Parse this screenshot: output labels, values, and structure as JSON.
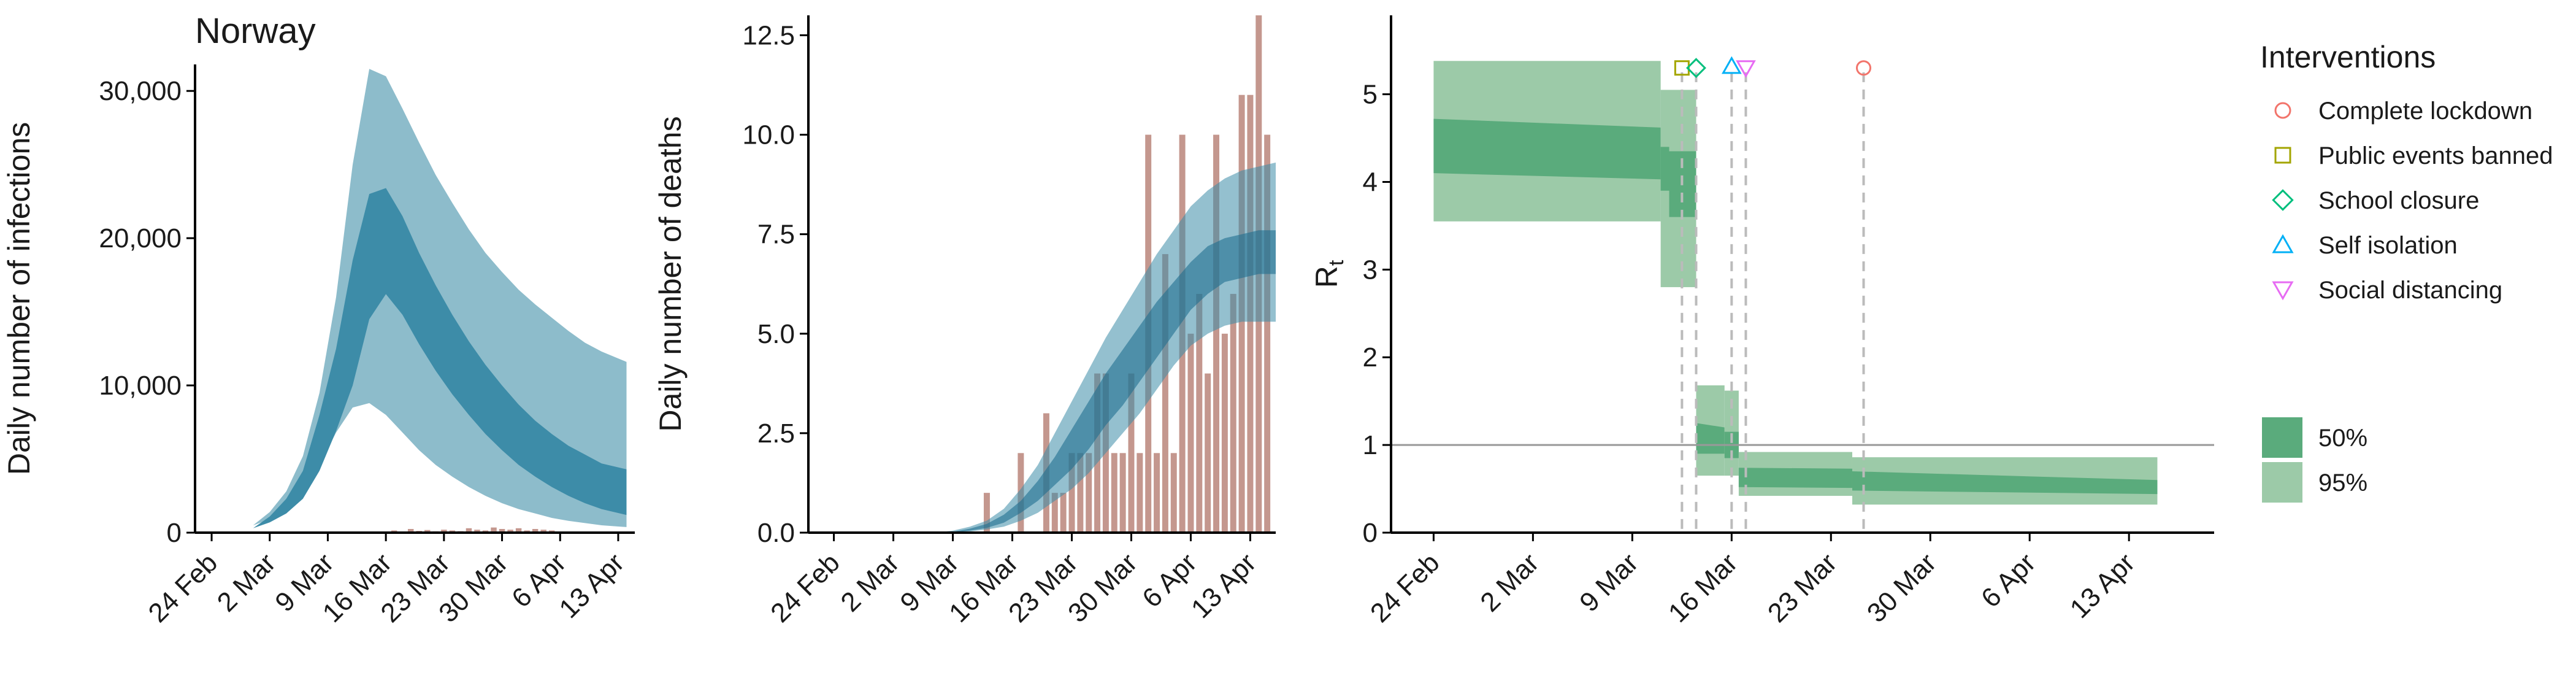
{
  "title": "Norway",
  "colors": {
    "infection_ci95": "#8dbccb",
    "infection_ci50": "#3d8ca8",
    "bars": "#c4978e",
    "rt_ci95": "#9ccaa8",
    "rt_ci50": "#5aab7c",
    "axis": "#000000",
    "dashed": "#bbbbbb",
    "ref_line": "#999999"
  },
  "chart_data": [
    {
      "type": "area",
      "name": "infections",
      "ylabel": "Daily number of infections",
      "xticks": [
        "24 Feb",
        "2 Mar",
        "9 Mar",
        "16 Mar",
        "23 Mar",
        "30 Mar",
        "6 Apr",
        "13 Apr"
      ],
      "xtick_days": [
        0,
        7,
        14,
        21,
        28,
        35,
        42,
        49
      ],
      "yticks": [
        0,
        10000,
        20000,
        30000
      ],
      "ytick_labels": [
        "0",
        "10,000",
        "20,000",
        "30,000"
      ],
      "ylim": [
        0,
        31800
      ],
      "xlim": [
        -2,
        51
      ],
      "bands": {
        "days": [
          0,
          3,
          5,
          7,
          9,
          11,
          13,
          15,
          17,
          19,
          21,
          23,
          25,
          27,
          29,
          31,
          33,
          35,
          37,
          39,
          41,
          43,
          45,
          47,
          50
        ],
        "ci95_low": [
          500,
          500,
          500,
          900,
          1600,
          2800,
          4600,
          6800,
          8500,
          8800,
          8000,
          6800,
          5600,
          4600,
          3800,
          3100,
          2500,
          2000,
          1600,
          1300,
          1000,
          800,
          650,
          500,
          380
        ],
        "ci95_high": [
          500,
          500,
          500,
          1400,
          2800,
          5200,
          9500,
          16000,
          25000,
          31500,
          31000,
          28800,
          26500,
          24300,
          22400,
          20600,
          19000,
          17700,
          16500,
          15500,
          14600,
          13700,
          12900,
          12300,
          11600
        ],
        "ci50_low": [
          300,
          300,
          300,
          700,
          1300,
          2300,
          4200,
          6900,
          10000,
          14500,
          16200,
          14800,
          12800,
          11000,
          9400,
          8000,
          6700,
          5600,
          4600,
          3800,
          3100,
          2500,
          2000,
          1600,
          1200
        ],
        "ci50_high": [
          300,
          300,
          300,
          1100,
          2300,
          4200,
          8000,
          12500,
          18500,
          23000,
          23400,
          21500,
          19000,
          16800,
          14800,
          13000,
          11400,
          10000,
          8700,
          7600,
          6700,
          5900,
          5300,
          4700,
          4300
        ]
      },
      "bar_days": [
        22,
        23,
        24,
        25,
        26,
        27,
        28,
        29,
        30,
        31,
        32,
        33,
        34,
        35,
        36,
        37,
        38,
        39,
        40,
        41
      ],
      "bar_values": [
        150,
        80,
        250,
        120,
        180,
        90,
        200,
        150,
        100,
        300,
        200,
        150,
        350,
        250,
        200,
        300,
        150,
        250,
        200,
        150
      ]
    },
    {
      "type": "bar",
      "name": "deaths",
      "ylabel": "Daily number of deaths",
      "xticks": [
        "24 Feb",
        "2 Mar",
        "9 Mar",
        "16 Mar",
        "23 Mar",
        "30 Mar",
        "6 Apr",
        "13 Apr"
      ],
      "xtick_days": [
        0,
        7,
        14,
        21,
        28,
        35,
        42,
        49
      ],
      "yticks": [
        0,
        2.5,
        5,
        7.5,
        10,
        12.5
      ],
      "ytick_labels": [
        "0.0",
        "2.5",
        "5.0",
        "7.5",
        "10.0",
        "12.5"
      ],
      "ylim": [
        0,
        13
      ],
      "xlim": [
        -3,
        52
      ],
      "bar_days": [
        18,
        22,
        25,
        26,
        27,
        28,
        29,
        30,
        31,
        32,
        33,
        34,
        35,
        36,
        37,
        38,
        39,
        40,
        41,
        42,
        43,
        44,
        45,
        46,
        47,
        48,
        49,
        50,
        51
      ],
      "bar_values": [
        1,
        2,
        3,
        1,
        1,
        2,
        2,
        2,
        4,
        4,
        2,
        2,
        4,
        2,
        10,
        2,
        7,
        2,
        10,
        5,
        6,
        4,
        10,
        5,
        6,
        11,
        11,
        13,
        10
      ],
      "bands": {
        "days": [
          0,
          12,
          14,
          16,
          18,
          20,
          22,
          24,
          26,
          28,
          30,
          32,
          34,
          36,
          38,
          40,
          42,
          44,
          46,
          48,
          50,
          52
        ],
        "ci95_low": [
          0,
          0,
          0,
          0.03,
          0.08,
          0.15,
          0.3,
          0.5,
          0.8,
          1.1,
          1.5,
          2.0,
          2.5,
          3.0,
          3.6,
          4.2,
          4.7,
          5.0,
          5.2,
          5.3,
          5.3,
          5.3
        ],
        "ci95_high": [
          0,
          0,
          0.05,
          0.15,
          0.3,
          0.6,
          1.1,
          1.7,
          2.5,
          3.3,
          4.1,
          4.9,
          5.6,
          6.3,
          7.0,
          7.6,
          8.2,
          8.6,
          8.9,
          9.1,
          9.2,
          9.3
        ],
        "ci50_low": [
          0,
          0,
          0,
          0.05,
          0.12,
          0.25,
          0.5,
          0.8,
          1.2,
          1.6,
          2.1,
          2.7,
          3.2,
          3.8,
          4.4,
          5.0,
          5.6,
          6.0,
          6.3,
          6.4,
          6.5,
          6.5
        ],
        "ci50_high": [
          0,
          0,
          0.02,
          0.1,
          0.22,
          0.45,
          0.8,
          1.3,
          1.9,
          2.6,
          3.3,
          4.0,
          4.6,
          5.2,
          5.8,
          6.3,
          6.8,
          7.2,
          7.4,
          7.5,
          7.6,
          7.6
        ]
      }
    },
    {
      "type": "area",
      "name": "rt",
      "ylabel": "Rt",
      "xticks": [
        "24 Feb",
        "2 Mar",
        "9 Mar",
        "16 Mar",
        "23 Mar",
        "30 Mar",
        "6 Apr",
        "13 Apr"
      ],
      "xtick_days": [
        0,
        7,
        14,
        21,
        28,
        35,
        42,
        49
      ],
      "yticks": [
        0,
        1,
        2,
        3,
        4,
        5
      ],
      "ytick_labels": [
        "0",
        "1",
        "2",
        "3",
        "4",
        "5"
      ],
      "ylim": [
        0,
        5.9
      ],
      "xlim": [
        -3,
        55
      ],
      "reference_line": 1,
      "segments": [
        {
          "start": 0,
          "end": 16,
          "ci95": [
            3.55,
            5.38
          ],
          "ci50_start": [
            4.1,
            4.72
          ],
          "ci50_end": [
            4.03,
            4.62
          ]
        },
        {
          "start": 16,
          "end": 16.6,
          "ci95": [
            2.8,
            5.05
          ],
          "ci50_start": [
            3.9,
            4.4
          ],
          "ci50_end": [
            3.9,
            4.4
          ]
        },
        {
          "start": 16.6,
          "end": 18.5,
          "ci95": [
            2.8,
            5.05
          ],
          "ci50_start": [
            3.6,
            4.35
          ],
          "ci50_end": [
            3.6,
            4.35
          ]
        },
        {
          "start": 18.5,
          "end": 20.5,
          "ci95": [
            0.65,
            1.68
          ],
          "ci50_start": [
            0.9,
            1.25
          ],
          "ci50_end": [
            0.9,
            1.2
          ]
        },
        {
          "start": 20.5,
          "end": 21.5,
          "ci95": [
            0.65,
            1.62
          ],
          "ci50_start": [
            0.85,
            1.15
          ],
          "ci50_end": [
            0.85,
            1.15
          ]
        },
        {
          "start": 21.5,
          "end": 29.5,
          "ci95": [
            0.42,
            0.92
          ],
          "ci50_start": [
            0.52,
            0.74
          ],
          "ci50_end": [
            0.51,
            0.73
          ]
        },
        {
          "start": 29.5,
          "end": 51,
          "ci95": [
            0.32,
            0.86
          ],
          "ci50_start": [
            0.48,
            0.7
          ],
          "ci50_end": [
            0.44,
            0.6
          ]
        }
      ],
      "interventions": [
        {
          "label": "Complete lockdown",
          "day": 30.3,
          "value": 5.3,
          "symbol": "circle",
          "color": "#f2746b"
        },
        {
          "label": "Public events banned",
          "day": 17.5,
          "value": 5.3,
          "symbol": "square",
          "color": "#a3a500"
        },
        {
          "label": "School closure",
          "day": 18.5,
          "value": 5.3,
          "symbol": "diamond",
          "color": "#00bf7d"
        },
        {
          "label": "Self isolation",
          "day": 21.0,
          "value": 5.32,
          "symbol": "triangle-up",
          "color": "#00b0f6"
        },
        {
          "label": "Social distancing",
          "day": 22.0,
          "value": 5.3,
          "symbol": "triangle-down",
          "color": "#e76bf3"
        }
      ],
      "dashed_days": [
        17.5,
        18.5,
        21.0,
        22.0,
        30.3
      ]
    }
  ],
  "legend": {
    "interventions_title": "Interventions",
    "interventions": [
      {
        "label": "Complete lockdown",
        "symbol": "circle",
        "color": "#f2746b"
      },
      {
        "label": "Public events banned",
        "symbol": "square",
        "color": "#a3a500"
      },
      {
        "label": "School closure",
        "symbol": "diamond",
        "color": "#00bf7d"
      },
      {
        "label": "Self isolation",
        "symbol": "triangle-up",
        "color": "#00b0f6"
      },
      {
        "label": "Social distancing",
        "symbol": "triangle-down",
        "color": "#e76bf3"
      }
    ],
    "intervals": [
      {
        "label": "50%",
        "color": "#5aab7c"
      },
      {
        "label": "95%",
        "color": "#9ccaa8"
      }
    ]
  }
}
